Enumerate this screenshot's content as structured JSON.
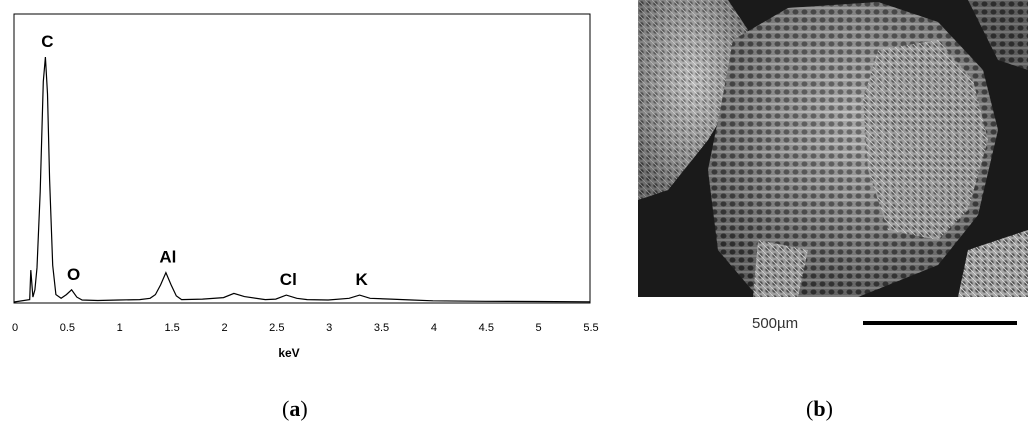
{
  "chart_data": {
    "type": "line",
    "panel_label": "a",
    "xlabel": "keV",
    "xlim": [
      0,
      5.5
    ],
    "xticks": [
      "0",
      "0.5",
      "1",
      "1.5",
      "2",
      "2.5",
      "3",
      "3.5",
      "4",
      "4.5",
      "5",
      "5.5"
    ],
    "ylim": [
      0,
      100
    ],
    "grid": false,
    "spectrum": [
      [
        0.0,
        0
      ],
      [
        0.15,
        1
      ],
      [
        0.16,
        13
      ],
      [
        0.18,
        2
      ],
      [
        0.2,
        5
      ],
      [
        0.22,
        14
      ],
      [
        0.25,
        45
      ],
      [
        0.28,
        90
      ],
      [
        0.3,
        100
      ],
      [
        0.32,
        85
      ],
      [
        0.34,
        50
      ],
      [
        0.37,
        15
      ],
      [
        0.4,
        3
      ],
      [
        0.45,
        1.5
      ],
      [
        0.5,
        3
      ],
      [
        0.55,
        5
      ],
      [
        0.6,
        2
      ],
      [
        0.65,
        0.8
      ],
      [
        0.8,
        0.6
      ],
      [
        1.0,
        0.8
      ],
      [
        1.2,
        1
      ],
      [
        1.3,
        1.5
      ],
      [
        1.35,
        3
      ],
      [
        1.4,
        7
      ],
      [
        1.45,
        12
      ],
      [
        1.5,
        7
      ],
      [
        1.55,
        2.5
      ],
      [
        1.6,
        1
      ],
      [
        1.8,
        1.2
      ],
      [
        2.0,
        1.8
      ],
      [
        2.1,
        3.5
      ],
      [
        2.2,
        2.2
      ],
      [
        2.4,
        1
      ],
      [
        2.5,
        1.2
      ],
      [
        2.6,
        2.8
      ],
      [
        2.7,
        1.5
      ],
      [
        2.8,
        1
      ],
      [
        3.0,
        0.8
      ],
      [
        3.2,
        1.5
      ],
      [
        3.3,
        2.8
      ],
      [
        3.4,
        1.5
      ],
      [
        3.6,
        1.2
      ],
      [
        3.8,
        0.8
      ],
      [
        4.0,
        0.5
      ],
      [
        4.5,
        0.3
      ],
      [
        5.0,
        0.2
      ],
      [
        5.5,
        0.1
      ]
    ],
    "peaks": [
      {
        "label": "C",
        "x": 0.3,
        "y": 100
      },
      {
        "label": "O",
        "x": 0.55,
        "y": 5
      },
      {
        "label": "Al",
        "x": 1.45,
        "y": 12
      },
      {
        "label": "Cl",
        "x": 2.6,
        "y": 2.8
      },
      {
        "label": "K",
        "x": 3.3,
        "y": 2.8
      }
    ]
  },
  "sem_image": {
    "panel_label": "b",
    "scale_bar_text": "500µm"
  }
}
